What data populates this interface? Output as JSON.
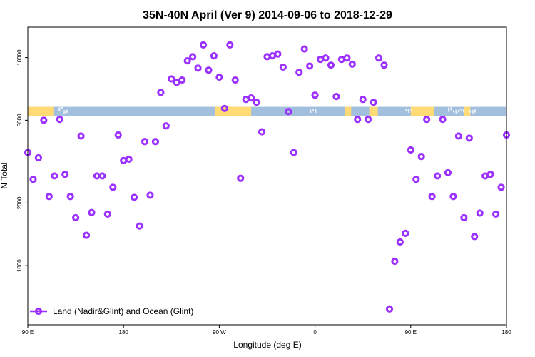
{
  "chart_data": {
    "type": "scatter",
    "title": "35N-40N April (Ver 9)   2014-09-06 to 2018-12-29",
    "xlabel": "Longitude (deg E)",
    "ylabel": "N Total",
    "y_scale": "log",
    "xlim": [
      90,
      540
    ],
    "ylim": [
      520,
      14000
    ],
    "x_ticks": [
      {
        "value": 90,
        "label": "90 E"
      },
      {
        "value": 180,
        "label": "180"
      },
      {
        "value": 270,
        "label": "90 W"
      },
      {
        "value": 360,
        "label": "0"
      },
      {
        "value": 450,
        "label": "90 E"
      },
      {
        "value": 540,
        "label": "180"
      }
    ],
    "y_ticks": [
      {
        "value": 1000,
        "label": "1000"
      },
      {
        "value": 2000,
        "label": "2000"
      },
      {
        "value": 5000,
        "label": "5000"
      },
      {
        "value": 10000,
        "label": "10000"
      }
    ],
    "grid": false,
    "legend_position": "bottom-left",
    "series": [
      {
        "name": "Land (Nadir&Glint) and Ocean (Glint)",
        "color": "#9b30ff",
        "points": [
          [
            90,
            3500
          ],
          [
            95,
            2600
          ],
          [
            100,
            3300
          ],
          [
            105,
            5000
          ],
          [
            110,
            2150
          ],
          [
            115,
            2700
          ],
          [
            120,
            5050
          ],
          [
            125,
            2750
          ],
          [
            130,
            2150
          ],
          [
            135,
            1700
          ],
          [
            140,
            4200
          ],
          [
            145,
            1400
          ],
          [
            150,
            1800
          ],
          [
            155,
            2700
          ],
          [
            160,
            2700
          ],
          [
            165,
            1770
          ],
          [
            170,
            2380
          ],
          [
            175,
            4250
          ],
          [
            180,
            3200
          ],
          [
            185,
            3250
          ],
          [
            190,
            2130
          ],
          [
            195,
            1550
          ],
          [
            200,
            3950
          ],
          [
            205,
            2180
          ],
          [
            210,
            3950
          ],
          [
            215,
            6800
          ],
          [
            220,
            4700
          ],
          [
            225,
            7900
          ],
          [
            230,
            7600
          ],
          [
            235,
            7800
          ],
          [
            240,
            9650
          ],
          [
            245,
            10100
          ],
          [
            250,
            8900
          ],
          [
            255,
            11500
          ],
          [
            260,
            8700
          ],
          [
            265,
            10200
          ],
          [
            270,
            8050
          ],
          [
            275,
            5700
          ],
          [
            280,
            11500
          ],
          [
            285,
            7800
          ],
          [
            290,
            2630
          ],
          [
            295,
            6300
          ],
          [
            300,
            6400
          ],
          [
            305,
            6100
          ],
          [
            310,
            4400
          ],
          [
            315,
            10100
          ],
          [
            320,
            10200
          ],
          [
            325,
            10400
          ],
          [
            330,
            9000
          ],
          [
            335,
            5500
          ],
          [
            340,
            3500
          ],
          [
            345,
            8500
          ],
          [
            350,
            11000
          ],
          [
            355,
            9100
          ],
          [
            360,
            6600
          ],
          [
            365,
            9800
          ],
          [
            370,
            9950
          ],
          [
            375,
            9200
          ],
          [
            380,
            6500
          ],
          [
            385,
            9800
          ],
          [
            390,
            9950
          ],
          [
            395,
            9300
          ],
          [
            400,
            5050
          ],
          [
            405,
            6300
          ],
          [
            410,
            5050
          ],
          [
            415,
            6100
          ],
          [
            420,
            9950
          ],
          [
            425,
            9200
          ],
          [
            430,
            620
          ],
          [
            435,
            1050
          ],
          [
            440,
            1300
          ],
          [
            445,
            1430
          ],
          [
            450,
            3600
          ],
          [
            455,
            2600
          ],
          [
            460,
            3350
          ],
          [
            465,
            5050
          ],
          [
            470,
            2150
          ],
          [
            475,
            2700
          ],
          [
            480,
            5050
          ],
          [
            485,
            2800
          ],
          [
            490,
            2150
          ],
          [
            495,
            4200
          ],
          [
            500,
            1700
          ],
          [
            505,
            4100
          ],
          [
            510,
            1380
          ],
          [
            515,
            1790
          ],
          [
            520,
            2700
          ],
          [
            525,
            2750
          ],
          [
            530,
            1770
          ],
          [
            535,
            2380
          ],
          [
            540,
            4250
          ]
        ]
      }
    ],
    "background_band": {
      "y_low": 5250,
      "y_high": 5800,
      "land_color": "#ffda75",
      "ocean_color": "#a2bfdd",
      "land_ranges": [
        [
          90,
          114
        ],
        [
          266,
          300
        ],
        [
          388,
          394
        ],
        [
          411,
          419
        ],
        [
          450,
          472
        ],
        [
          500,
          506
        ]
      ],
      "glint_ranges": [
        [
          119,
          127
        ],
        [
          355,
          362
        ],
        [
          445,
          450
        ],
        [
          485,
          500
        ],
        [
          505,
          510
        ]
      ]
    },
    "colors": {
      "points": "#9b30ff",
      "axes": "#000000"
    }
  }
}
